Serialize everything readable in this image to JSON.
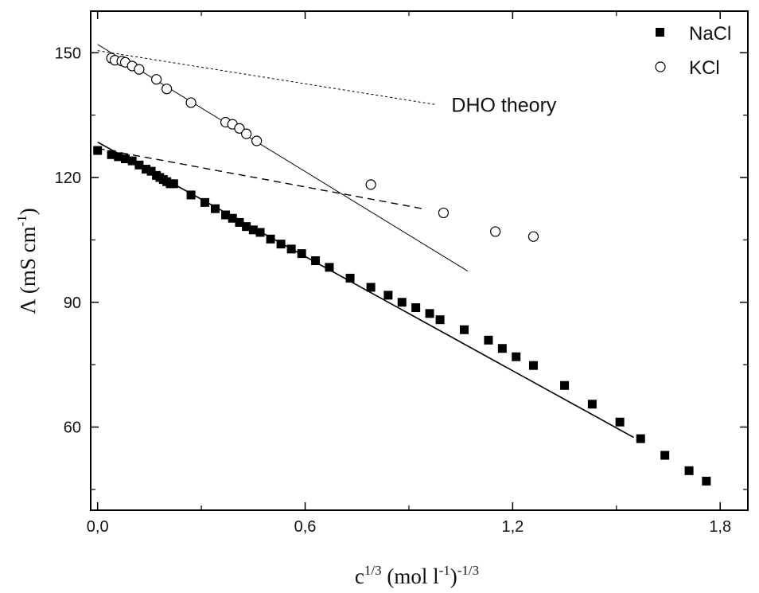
{
  "chart_data": {
    "type": "scatter",
    "xlabel": {
      "base": "c",
      "base_sup": "1/3",
      "unit": " (mol l",
      "unit_sup": "-1",
      "close": ")",
      "close_sup": "-1/3"
    },
    "ylabel": {
      "symbol": "Λ",
      "unit": " (mS cm",
      "unit_sup": "-1",
      "close": ")"
    },
    "xlim": [
      -0.02,
      1.88
    ],
    "ylim": [
      40,
      160
    ],
    "x_ticks": [
      0.0,
      0.6,
      1.2,
      1.8
    ],
    "x_tick_labels": [
      "0,0",
      "0,6",
      "1,2",
      "1,8"
    ],
    "x_minor_ticks": [
      0.3,
      0.9,
      1.5
    ],
    "y_ticks": [
      60,
      90,
      120,
      150
    ],
    "y_tick_labels": [
      "60",
      "90",
      "120",
      "150"
    ],
    "y_minor_ticks": [
      45,
      75,
      105,
      135
    ],
    "legend": {
      "position": "top-right"
    },
    "series": [
      {
        "name": "NaCl",
        "marker": "filled-square",
        "color": "#000000",
        "x": [
          0.0,
          0.04,
          0.06,
          0.08,
          0.1,
          0.12,
          0.14,
          0.155,
          0.17,
          0.18,
          0.19,
          0.2,
          0.21,
          0.22,
          0.27,
          0.31,
          0.34,
          0.37,
          0.39,
          0.41,
          0.43,
          0.45,
          0.47,
          0.5,
          0.53,
          0.56,
          0.59,
          0.63,
          0.67,
          0.73,
          0.79,
          0.84,
          0.88,
          0.92,
          0.96,
          0.99,
          1.06,
          1.13,
          1.17,
          1.21,
          1.26,
          1.35,
          1.43,
          1.51,
          1.57,
          1.64,
          1.71,
          1.76
        ],
        "y": [
          126.5,
          125.5,
          125.0,
          124.5,
          124.0,
          123.0,
          122.0,
          121.5,
          120.5,
          120.0,
          119.5,
          119.0,
          118.5,
          118.5,
          115.8,
          114.0,
          112.5,
          111.0,
          110.2,
          109.2,
          108.2,
          107.4,
          106.8,
          105.2,
          104.0,
          102.8,
          101.7,
          100.0,
          98.4,
          95.8,
          93.6,
          91.7,
          90.0,
          88.7,
          87.3,
          85.8,
          83.4,
          80.9,
          78.9,
          76.9,
          74.8,
          70.0,
          65.5,
          61.2,
          57.2,
          53.2,
          49.5,
          47.0
        ]
      },
      {
        "name": "KCl",
        "marker": "open-circle",
        "color": "#000000",
        "x": [
          0.04,
          0.05,
          0.07,
          0.08,
          0.1,
          0.12,
          0.17,
          0.2,
          0.27,
          0.37,
          0.39,
          0.41,
          0.43,
          0.46,
          0.79,
          1.0,
          1.15,
          1.26
        ],
        "y": [
          148.7,
          148.2,
          148.0,
          147.7,
          146.8,
          146.0,
          143.6,
          141.3,
          138.0,
          133.3,
          132.8,
          131.8,
          130.5,
          128.8,
          118.3,
          111.5,
          107.0,
          105.8
        ]
      }
    ],
    "lines": [
      {
        "name": "kcl-fit",
        "style": "solid",
        "x": [
          0.0,
          1.07
        ],
        "y": [
          152.0,
          97.5
        ]
      },
      {
        "name": "nacl-fit",
        "style": "solid",
        "x": [
          0.0,
          1.55
        ],
        "y": [
          128.5,
          57.5
        ]
      },
      {
        "name": "dho-kcl",
        "style": "dotted",
        "x": [
          0.0,
          0.98
        ],
        "y": [
          150.5,
          137.5
        ]
      },
      {
        "name": "dho-nacl",
        "style": "dashed",
        "x": [
          0.0,
          0.94
        ],
        "y": [
          127.0,
          112.5
        ]
      }
    ],
    "annotations": [
      {
        "text": "DHO theory",
        "x": 1.0,
        "y": 137.5
      }
    ]
  }
}
